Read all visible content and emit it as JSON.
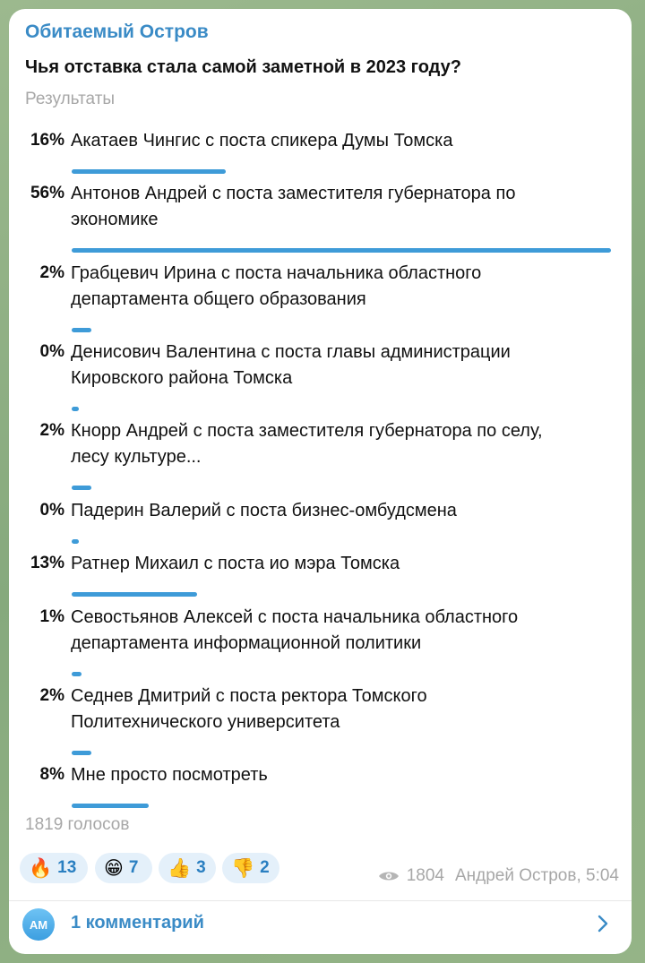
{
  "channel_name": "Обитаемый Остров",
  "poll": {
    "question": "Чья отставка стала самой заметной в 2023 году?",
    "results_label": "Результаты",
    "options": [
      {
        "percent": "16%",
        "value": 16,
        "text_lines": [
          "Акатаев Чингис с поста спикера Думы Томска"
        ]
      },
      {
        "percent": "56%",
        "value": 56,
        "text_lines": [
          "Антонов Андрей с поста заместителя губернатора по",
          "экономике"
        ]
      },
      {
        "percent": "2%",
        "value": 2,
        "text_lines": [
          "Грабцевич Ирина с поста начальника областного",
          "департамента общего образования"
        ]
      },
      {
        "percent": "0%",
        "value": 0,
        "text_lines": [
          "Денисович Валентина с поста главы администрации",
          "Кировского района Томска"
        ]
      },
      {
        "percent": "2%",
        "value": 2,
        "text_lines": [
          "Кнорр Андрей с поста заместителя губернатора по селу,",
          "лесу культуре..."
        ]
      },
      {
        "percent": "0%",
        "value": 0,
        "text_lines": [
          "Падерин Валерий с поста бизнес-омбудсмена"
        ]
      },
      {
        "percent": "13%",
        "value": 13,
        "text_lines": [
          "Ратнер Михаил с поста ио мэра Томска"
        ]
      },
      {
        "percent": "1%",
        "value": 1,
        "text_lines": [
          "Севостьянов Алексей с поста начальника областного",
          "департамента информационной политики"
        ]
      },
      {
        "percent": "2%",
        "value": 2,
        "text_lines": [
          "Седнев Дмитрий с поста ректора Томского",
          "Политехнического университета"
        ]
      },
      {
        "percent": "8%",
        "value": 8,
        "text_lines": [
          "Мне просто посмотреть"
        ]
      }
    ],
    "votes_label": "1819 голосов"
  },
  "reactions": [
    {
      "icon": "fire-icon",
      "emoji": "🔥",
      "count": "13"
    },
    {
      "icon": "grin-icon",
      "emoji": "😁",
      "count": "7"
    },
    {
      "icon": "thumbs-up-icon",
      "emoji": "👍",
      "count": "3"
    },
    {
      "icon": "thumbs-down-icon",
      "emoji": "👎",
      "count": "2"
    }
  ],
  "views": "1804",
  "author_time": "Андрей Остров, 5:04",
  "comments": {
    "avatar_initials": "АМ",
    "label": "1 комментарий"
  },
  "colors": {
    "accent": "#3a8bc6",
    "bar": "#3e9bd8",
    "muted": "#a7a7a7"
  }
}
